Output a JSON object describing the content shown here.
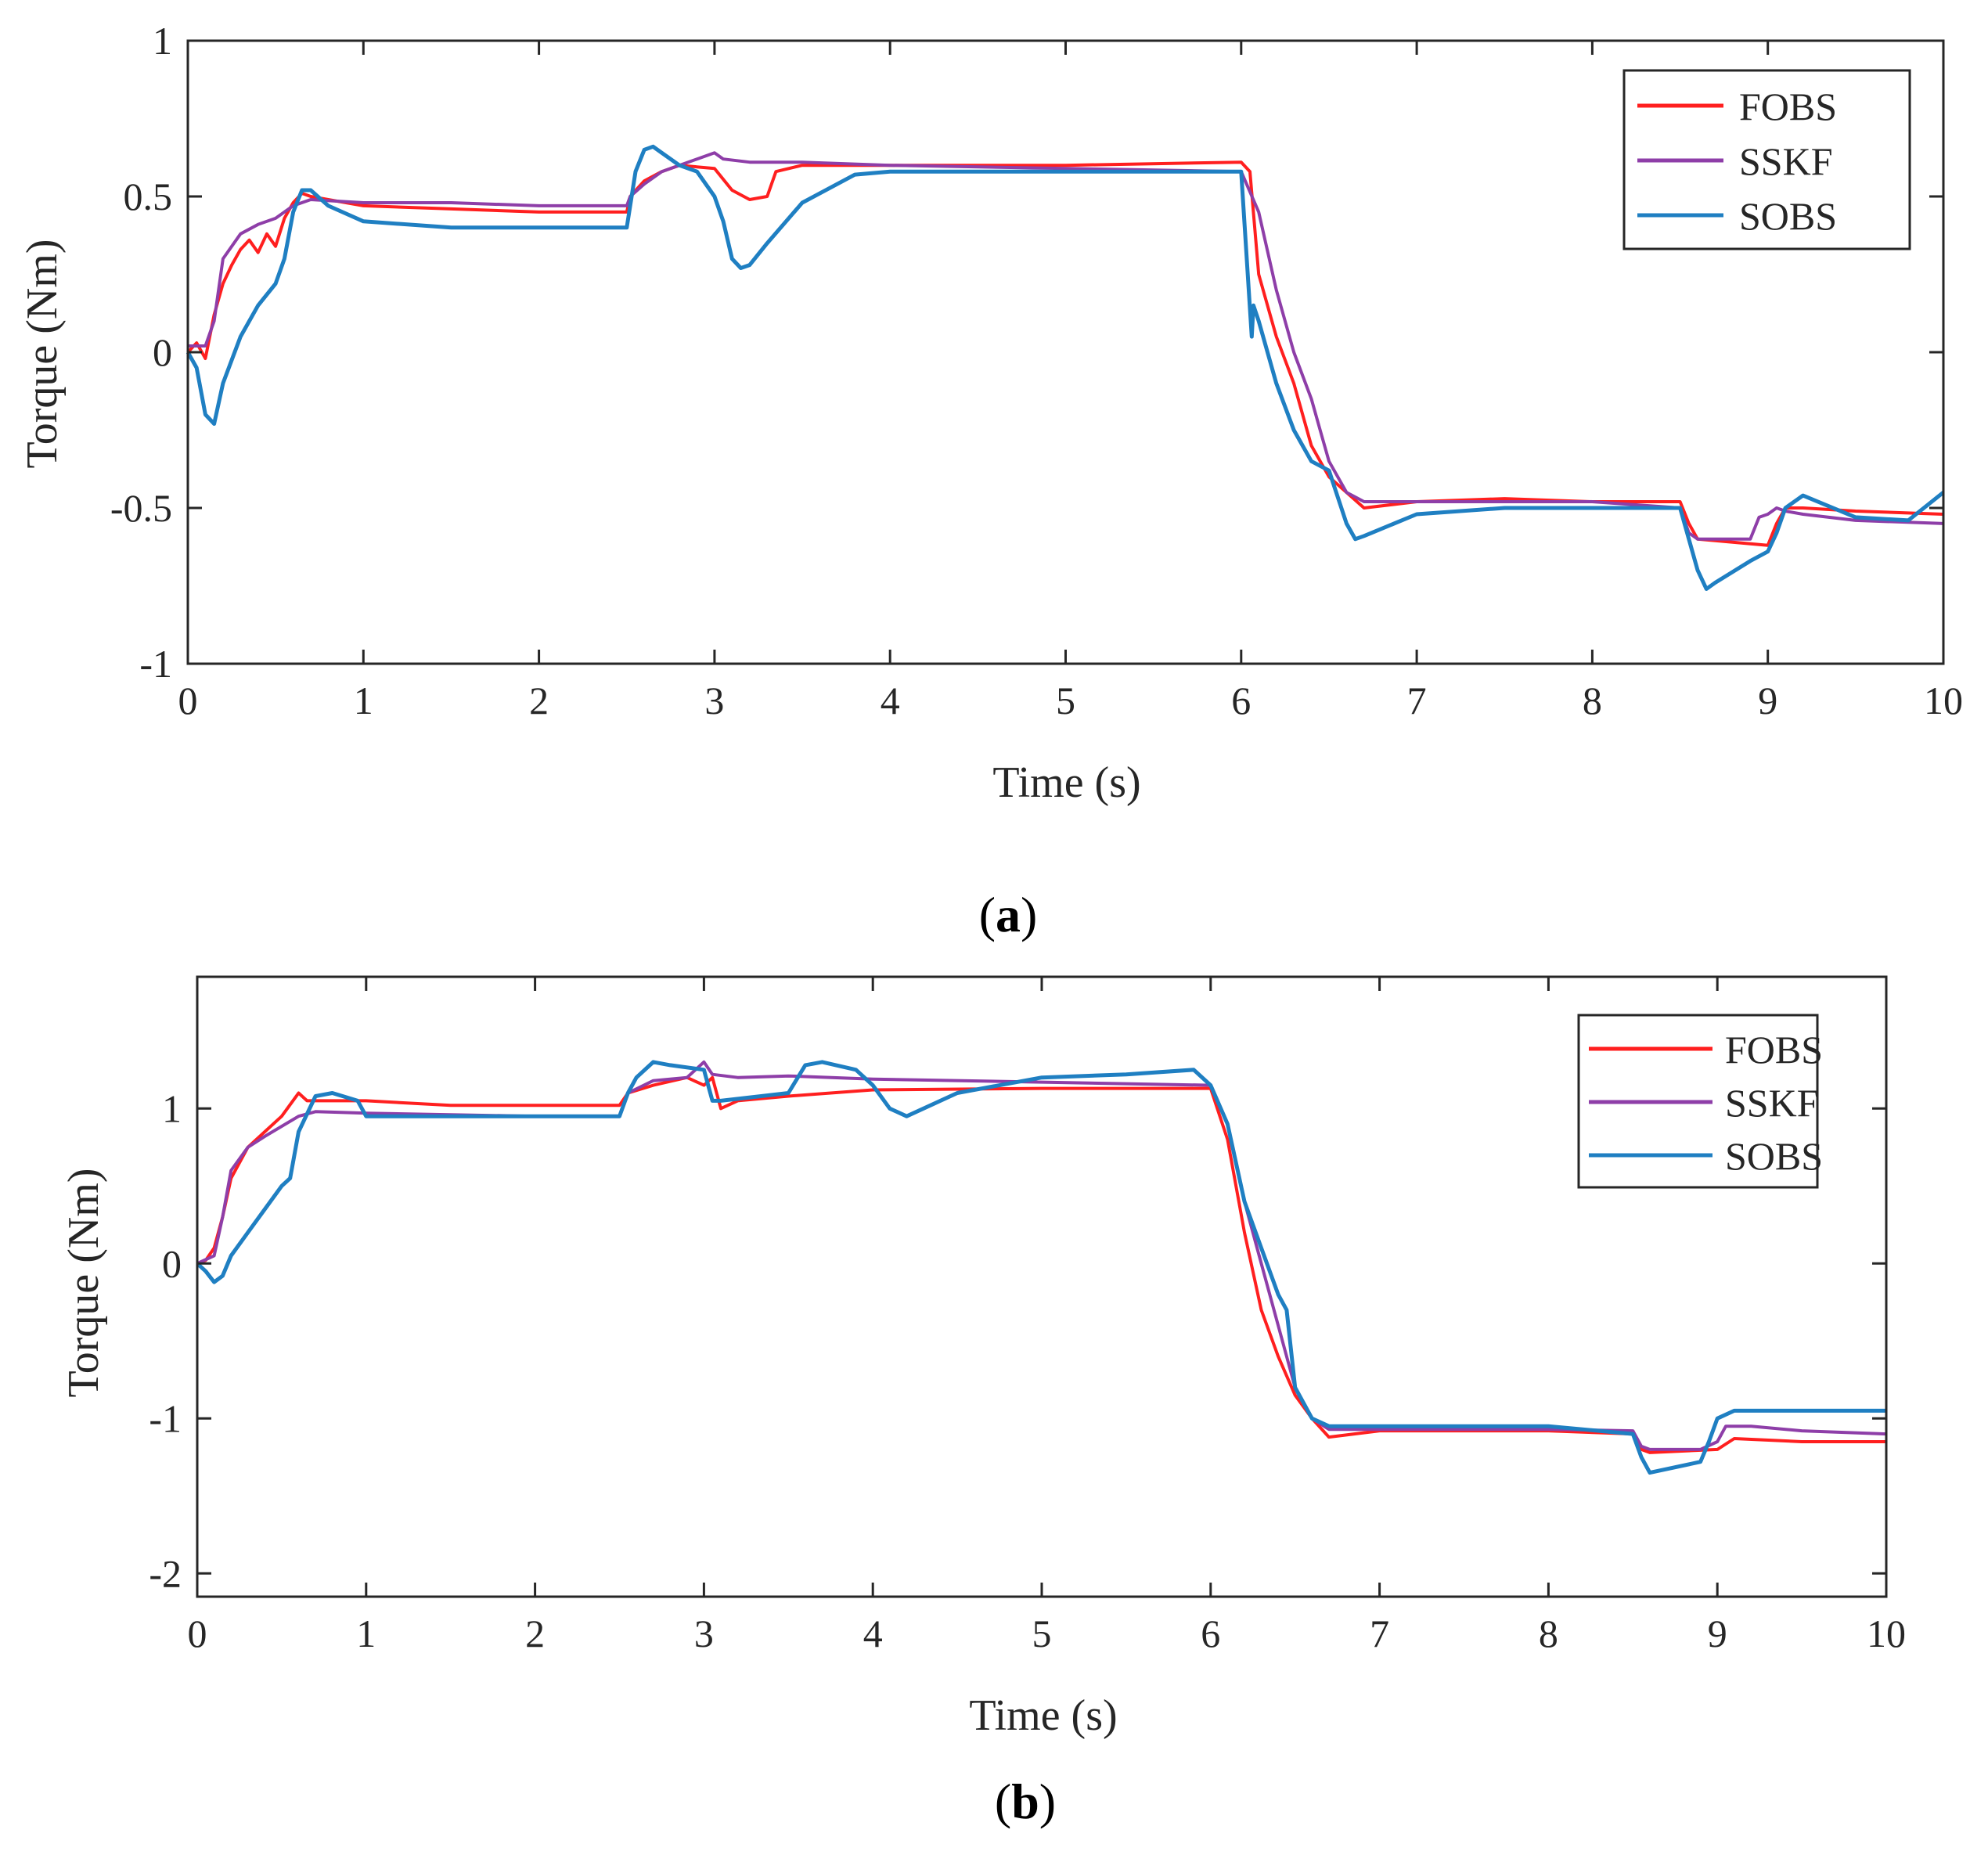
{
  "colors": {
    "FOBS": "#ff1f1f",
    "SSKF": "#8e3ea8",
    "SOBS": "#1f7fc2",
    "axis": "#262626"
  },
  "chart_data": [
    {
      "type": "line",
      "caption": {
        "open": "(",
        "letter": "a",
        "close": ")"
      },
      "xlabel": "Time (s)",
      "ylabel": "Torque (Nm)",
      "xlim": [
        0,
        10
      ],
      "ylim": [
        -1,
        1
      ],
      "xticks": [
        0,
        1,
        2,
        3,
        4,
        5,
        6,
        7,
        8,
        9,
        10
      ],
      "xtick_labels": [
        "0",
        "1",
        "2",
        "3",
        "4",
        "5",
        "6",
        "7",
        "8",
        "9",
        "10"
      ],
      "yticks": [
        -1,
        -0.5,
        0,
        0.5,
        1
      ],
      "ytick_labels": [
        "-1",
        "-0.5",
        "0",
        "0.5",
        "1"
      ],
      "grid": false,
      "legend_position": "top-right",
      "series": [
        {
          "name": "FOBS",
          "x": [
            0,
            0.05,
            0.1,
            0.15,
            0.2,
            0.25,
            0.3,
            0.35,
            0.4,
            0.45,
            0.5,
            0.55,
            0.6,
            0.65,
            0.7,
            0.8,
            1.0,
            1.5,
            2.0,
            2.5,
            2.52,
            2.6,
            2.7,
            2.8,
            3.0,
            3.1,
            3.2,
            3.3,
            3.35,
            3.5,
            4.0,
            5.0,
            6.0,
            6.05,
            6.1,
            6.2,
            6.3,
            6.4,
            6.5,
            6.6,
            6.7,
            7.0,
            7.5,
            8.0,
            8.5,
            8.55,
            8.6,
            9.0,
            9.05,
            9.1,
            9.2,
            9.5,
            10.0
          ],
          "y": [
            0.0,
            0.03,
            -0.02,
            0.12,
            0.22,
            0.28,
            0.33,
            0.36,
            0.32,
            0.38,
            0.34,
            0.43,
            0.48,
            0.51,
            0.5,
            0.49,
            0.47,
            0.46,
            0.45,
            0.45,
            0.5,
            0.55,
            0.58,
            0.6,
            0.59,
            0.52,
            0.49,
            0.5,
            0.58,
            0.6,
            0.6,
            0.6,
            0.61,
            0.58,
            0.25,
            0.05,
            -0.1,
            -0.3,
            -0.4,
            -0.45,
            -0.5,
            -0.48,
            -0.47,
            -0.48,
            -0.48,
            -0.55,
            -0.6,
            -0.62,
            -0.55,
            -0.5,
            -0.5,
            -0.51,
            -0.52
          ]
        },
        {
          "name": "SSKF",
          "x": [
            0,
            0.1,
            0.15,
            0.2,
            0.3,
            0.4,
            0.5,
            0.6,
            0.7,
            1.0,
            1.5,
            2.0,
            2.5,
            2.52,
            2.6,
            2.7,
            2.8,
            2.9,
            3.0,
            3.05,
            3.2,
            3.5,
            4.0,
            5.0,
            6.0,
            6.1,
            6.2,
            6.3,
            6.4,
            6.45,
            6.5,
            6.6,
            6.7,
            7.0,
            8.0,
            8.5,
            8.55,
            8.6,
            8.9,
            8.95,
            9.0,
            9.05,
            9.1,
            9.2,
            9.5,
            10.0
          ],
          "y": [
            0.02,
            0.02,
            0.1,
            0.3,
            0.38,
            0.41,
            0.43,
            0.47,
            0.49,
            0.48,
            0.48,
            0.47,
            0.47,
            0.5,
            0.54,
            0.58,
            0.6,
            0.62,
            0.64,
            0.62,
            0.61,
            0.61,
            0.6,
            0.59,
            0.58,
            0.45,
            0.2,
            0.0,
            -0.15,
            -0.25,
            -0.35,
            -0.45,
            -0.48,
            -0.48,
            -0.48,
            -0.5,
            -0.58,
            -0.6,
            -0.6,
            -0.53,
            -0.52,
            -0.5,
            -0.51,
            -0.52,
            -0.54,
            -0.55
          ]
        },
        {
          "name": "SOBS",
          "x": [
            0,
            0.05,
            0.1,
            0.15,
            0.2,
            0.3,
            0.4,
            0.5,
            0.55,
            0.6,
            0.65,
            0.7,
            0.8,
            1.0,
            1.5,
            2.0,
            2.5,
            2.55,
            2.6,
            2.65,
            2.7,
            2.8,
            2.9,
            3.0,
            3.05,
            3.1,
            3.15,
            3.2,
            3.3,
            3.5,
            3.8,
            4.0,
            5.0,
            6.0,
            6.06,
            6.07,
            6.1,
            6.2,
            6.3,
            6.4,
            6.5,
            6.6,
            6.65,
            6.7,
            7.0,
            7.5,
            8.0,
            8.5,
            8.55,
            8.6,
            8.65,
            8.7,
            8.9,
            9.0,
            9.05,
            9.1,
            9.2,
            9.5,
            9.8,
            10.0
          ],
          "y": [
            0.0,
            -0.05,
            -0.2,
            -0.23,
            -0.1,
            0.05,
            0.15,
            0.22,
            0.3,
            0.45,
            0.52,
            0.52,
            0.47,
            0.42,
            0.4,
            0.4,
            0.4,
            0.58,
            0.65,
            0.66,
            0.64,
            0.6,
            0.58,
            0.5,
            0.42,
            0.3,
            0.27,
            0.28,
            0.35,
            0.48,
            0.57,
            0.58,
            0.58,
            0.58,
            0.05,
            0.15,
            0.1,
            -0.1,
            -0.25,
            -0.35,
            -0.38,
            -0.55,
            -0.6,
            -0.59,
            -0.52,
            -0.5,
            -0.5,
            -0.5,
            -0.6,
            -0.7,
            -0.76,
            -0.74,
            -0.67,
            -0.64,
            -0.58,
            -0.5,
            -0.46,
            -0.53,
            -0.54,
            -0.45
          ]
        }
      ]
    },
    {
      "type": "line",
      "caption": {
        "open": "(",
        "letter": "b",
        "close": ")"
      },
      "xlabel": "Time (s)",
      "ylabel": "Torque (Nm)",
      "xlim": [
        0,
        10
      ],
      "ylim": [
        -2.15,
        1.85
      ],
      "xticks": [
        0,
        1,
        2,
        3,
        4,
        5,
        6,
        7,
        8,
        9,
        10
      ],
      "xtick_labels": [
        "0",
        "1",
        "2",
        "3",
        "4",
        "5",
        "6",
        "7",
        "8",
        "9",
        "10"
      ],
      "yticks": [
        -2,
        -1,
        0,
        1
      ],
      "ytick_labels": [
        "-2",
        "-1",
        "0",
        "1"
      ],
      "grid": false,
      "legend_position": "top-right",
      "series": [
        {
          "name": "FOBS",
          "x": [
            0,
            0.05,
            0.1,
            0.15,
            0.2,
            0.3,
            0.4,
            0.5,
            0.6,
            0.65,
            0.8,
            1.0,
            1.5,
            2.0,
            2.5,
            2.55,
            2.7,
            2.9,
            3.0,
            3.05,
            3.1,
            3.2,
            3.5,
            4.0,
            5.0,
            6.0,
            6.1,
            6.2,
            6.3,
            6.4,
            6.5,
            6.6,
            6.7,
            7.0,
            8.0,
            8.5,
            8.55,
            8.6,
            9.0,
            9.1,
            9.5,
            10.0
          ],
          "y": [
            0.0,
            0.02,
            0.1,
            0.3,
            0.55,
            0.75,
            0.85,
            0.95,
            1.1,
            1.05,
            1.05,
            1.05,
            1.02,
            1.02,
            1.02,
            1.1,
            1.15,
            1.2,
            1.15,
            1.2,
            1.0,
            1.05,
            1.08,
            1.12,
            1.13,
            1.13,
            0.8,
            0.2,
            -0.3,
            -0.6,
            -0.85,
            -1.0,
            -1.12,
            -1.08,
            -1.08,
            -1.1,
            -1.2,
            -1.22,
            -1.2,
            -1.13,
            -1.15,
            -1.15
          ]
        },
        {
          "name": "SSKF",
          "x": [
            0,
            0.1,
            0.15,
            0.2,
            0.3,
            0.4,
            0.6,
            0.7,
            1.0,
            1.5,
            2.0,
            2.5,
            2.55,
            2.7,
            2.9,
            3.0,
            3.05,
            3.2,
            3.5,
            4.0,
            5.0,
            6.0,
            6.1,
            6.2,
            6.3,
            6.4,
            6.5,
            6.6,
            6.7,
            7.0,
            8.0,
            8.5,
            8.55,
            8.6,
            8.9,
            9.0,
            9.05,
            9.1,
            9.2,
            9.5,
            10.0
          ],
          "y": [
            0.0,
            0.05,
            0.3,
            0.6,
            0.75,
            0.82,
            0.95,
            0.98,
            0.97,
            0.96,
            0.95,
            0.95,
            1.1,
            1.18,
            1.2,
            1.3,
            1.22,
            1.2,
            1.21,
            1.19,
            1.17,
            1.15,
            0.9,
            0.4,
            0.0,
            -0.4,
            -0.8,
            -1.0,
            -1.07,
            -1.07,
            -1.07,
            -1.08,
            -1.18,
            -1.2,
            -1.2,
            -1.15,
            -1.05,
            -1.05,
            -1.05,
            -1.08,
            -1.1
          ]
        },
        {
          "name": "SOBS",
          "x": [
            0,
            0.05,
            0.1,
            0.15,
            0.2,
            0.3,
            0.4,
            0.5,
            0.55,
            0.6,
            0.7,
            0.8,
            0.95,
            1.0,
            1.5,
            2.0,
            2.5,
            2.55,
            2.6,
            2.7,
            2.8,
            3.0,
            3.05,
            3.1,
            3.5,
            3.6,
            3.7,
            3.9,
            4.0,
            4.1,
            4.2,
            4.5,
            5.0,
            5.5,
            5.9,
            6.0,
            6.1,
            6.2,
            6.3,
            6.4,
            6.45,
            6.5,
            6.6,
            6.7,
            7.0,
            8.0,
            8.5,
            8.55,
            8.6,
            8.9,
            8.95,
            9.0,
            9.1,
            9.5,
            10.0
          ],
          "y": [
            0.0,
            -0.05,
            -0.12,
            -0.08,
            0.05,
            0.2,
            0.35,
            0.5,
            0.55,
            0.85,
            1.08,
            1.1,
            1.05,
            0.95,
            0.95,
            0.95,
            0.95,
            1.1,
            1.2,
            1.3,
            1.28,
            1.25,
            1.05,
            1.05,
            1.1,
            1.28,
            1.3,
            1.25,
            1.15,
            1.0,
            0.95,
            1.1,
            1.2,
            1.22,
            1.25,
            1.15,
            0.9,
            0.4,
            0.1,
            -0.2,
            -0.3,
            -0.8,
            -1.0,
            -1.05,
            -1.05,
            -1.05,
            -1.1,
            -1.25,
            -1.35,
            -1.28,
            -1.15,
            -1.0,
            -0.95,
            -0.95,
            -0.95
          ]
        }
      ]
    }
  ]
}
